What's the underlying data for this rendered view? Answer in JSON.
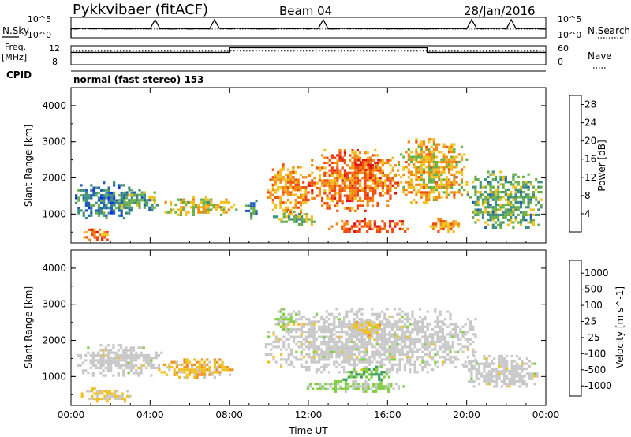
{
  "header": {
    "station": "Pykkvibaer (fitACF)",
    "beam": "Beam 04",
    "date": "28/Jan/2016"
  },
  "status_panels": {
    "nsky_label": "N.Sky",
    "nsearch_label": "N.Search",
    "freq_label_line1": "Freq.",
    "freq_label_line2": "[MHz]",
    "nave_label": "Nave",
    "cpid_label": "CPID",
    "cpid_text": "normal (fast stereo) 153",
    "noise_ticks": [
      "10^5",
      "10^0"
    ],
    "freq_ticks": [
      "12",
      "8"
    ],
    "nave_ticks": [
      "60",
      "0"
    ],
    "freq_profile": [
      [
        0.0,
        10.6
      ],
      [
        8.0,
        10.6
      ],
      [
        8.0,
        11.6
      ],
      [
        18.0,
        11.6
      ],
      [
        18.0,
        10.6
      ],
      [
        24.0,
        10.6
      ]
    ],
    "freq_range": [
      8,
      12
    ],
    "nave_level": 0.72,
    "nsky_level": 0.45,
    "nsky_spikes": [
      4.3,
      7.2,
      12.8,
      20.3,
      22.3
    ],
    "nsearch_level": 0.43
  },
  "colors": {
    "power_scale": [
      "#0b2df0",
      "#1f5fb8",
      "#3f8f7a",
      "#69b04b",
      "#f0c020",
      "#f08a10",
      "#f04a10",
      "#e01010"
    ],
    "velocity_scale": [
      "#1f3fb8",
      "#2f7fa0",
      "#3f9f5f",
      "#7fcf3f",
      "#c8c8c8",
      "#f0c020",
      "#f09020",
      "#f05a10",
      "#e01010"
    ],
    "ground_scatter": "#c8c8c8"
  },
  "chart_data": [
    {
      "type": "heatmap",
      "xlabel": "",
      "ylabel": "Slant Range [km]",
      "x_ticks": [
        "00:00",
        "04:00",
        "08:00",
        "12:00",
        "16:00",
        "20:00",
        "00:00"
      ],
      "y_ticks": [
        "1000",
        "2000",
        "3000",
        "4000"
      ],
      "xlim": [
        0,
        24
      ],
      "ylim": [
        200,
        4500
      ],
      "colorbar_label": "Power [dB]",
      "colorbar_ticks": [
        "4",
        "8",
        "12",
        "16",
        "20",
        "24",
        "28"
      ],
      "colorbar_range": [
        0,
        30
      ],
      "regions": [
        {
          "x0": 0.2,
          "x1": 3.2,
          "y0": 900,
          "y1": 1900,
          "value": 8
        },
        {
          "x0": 0.5,
          "x1": 2.0,
          "y0": 300,
          "y1": 600,
          "value": 22
        },
        {
          "x0": 2.0,
          "x1": 4.4,
          "y0": 1100,
          "y1": 1700,
          "value": 12
        },
        {
          "x0": 4.6,
          "x1": 8.4,
          "y0": 1000,
          "y1": 1500,
          "value": 16
        },
        {
          "x0": 8.8,
          "x1": 9.4,
          "y0": 900,
          "y1": 1400,
          "value": 10
        },
        {
          "x0": 9.9,
          "x1": 12.0,
          "y0": 1000,
          "y1": 2400,
          "value": 20
        },
        {
          "x0": 12.0,
          "x1": 16.5,
          "y0": 1100,
          "y1": 2800,
          "value": 22
        },
        {
          "x0": 14.2,
          "x1": 15.6,
          "y0": 2200,
          "y1": 2600,
          "value": 26
        },
        {
          "x0": 13.0,
          "x1": 17.0,
          "y0": 500,
          "y1": 900,
          "value": 24
        },
        {
          "x0": 16.5,
          "x1": 20.0,
          "y0": 1300,
          "y1": 3100,
          "value": 18
        },
        {
          "x0": 18.0,
          "x1": 19.6,
          "y0": 500,
          "y1": 900,
          "value": 20
        },
        {
          "x0": 20.0,
          "x1": 23.8,
          "y0": 600,
          "y1": 2200,
          "value": 12
        },
        {
          "x0": 10.2,
          "x1": 12.4,
          "y0": 700,
          "y1": 1100,
          "value": 14
        }
      ]
    },
    {
      "type": "heatmap",
      "xlabel": "Time UT",
      "ylabel": "Slant Range [km]",
      "x_ticks": [
        "00:00",
        "04:00",
        "08:00",
        "12:00",
        "16:00",
        "20:00",
        "00:00"
      ],
      "y_ticks": [
        "1000",
        "2000",
        "3000",
        "4000"
      ],
      "xlim": [
        0,
        24
      ],
      "ylim": [
        200,
        4500
      ],
      "colorbar_label": "Velocity [m s^-1]",
      "colorbar_ticks": [
        "1000",
        "500",
        "100",
        "25",
        "-25",
        "-100",
        "-500",
        "-1000"
      ],
      "colorbar_range": [
        -1200,
        1200
      ],
      "regions": [
        {
          "x0": 0.3,
          "x1": 4.6,
          "y0": 1000,
          "y1": 1900,
          "value": 0,
          "ground_scatter": true
        },
        {
          "x0": 4.4,
          "x1": 8.3,
          "y0": 1000,
          "y1": 1500,
          "value": -300
        },
        {
          "x0": 0.5,
          "x1": 3.0,
          "y0": 300,
          "y1": 700,
          "value": -150
        },
        {
          "x0": 9.8,
          "x1": 20.5,
          "y0": 1100,
          "y1": 2900,
          "value": 0,
          "ground_scatter": true
        },
        {
          "x0": 14.0,
          "x1": 15.6,
          "y0": 2100,
          "y1": 2600,
          "value": -200
        },
        {
          "x0": 11.4,
          "x1": 16.8,
          "y0": 600,
          "y1": 900,
          "value": 150
        },
        {
          "x0": 19.8,
          "x1": 23.6,
          "y0": 700,
          "y1": 1600,
          "value": 0,
          "ground_scatter": true
        },
        {
          "x0": 13.6,
          "x1": 16.2,
          "y0": 900,
          "y1": 1300,
          "value": 400
        },
        {
          "x0": 10.3,
          "x1": 11.5,
          "y0": 2300,
          "y1": 2900,
          "value": 60
        }
      ]
    }
  ]
}
